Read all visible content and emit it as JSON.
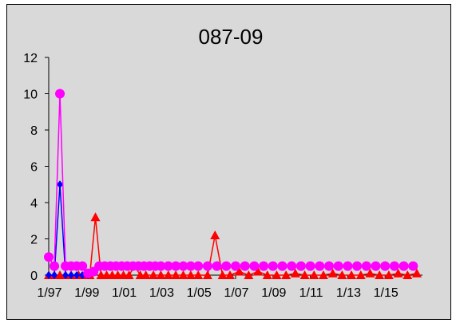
{
  "chart_data": {
    "type": "line",
    "title": "087-09",
    "xlabel": "",
    "ylabel": "",
    "ylim": [
      0,
      12
    ],
    "yticks": [
      0,
      2,
      4,
      6,
      8,
      10,
      12
    ],
    "xticks": [
      "1/97",
      "1/99",
      "1/01",
      "1/03",
      "1/05",
      "1/07",
      "1/09",
      "1/11",
      "1/13",
      "1/15"
    ],
    "xrange": [
      1997.0,
      2017.0
    ],
    "grid": false,
    "legend": "none",
    "series": [
      {
        "color": "#ff0000",
        "marker": "triangle",
        "x": [
          1997.0,
          1997.3,
          1997.6,
          1997.9,
          1998.2,
          1998.6,
          1998.9,
          1999.2,
          1999.5,
          1999.8,
          2000.1,
          2000.4,
          2000.7,
          2001.0,
          2001.3,
          2001.6,
          2001.9,
          2002.2,
          2002.6,
          2003.0,
          2003.4,
          2003.8,
          2004.2,
          2004.6,
          2005.0,
          2005.5,
          2005.9,
          2006.3,
          2006.7,
          2007.2,
          2007.7,
          2008.2,
          2008.7,
          2009.2,
          2009.7,
          2010.2,
          2010.7,
          2011.2,
          2011.7,
          2012.2,
          2012.7,
          2013.2,
          2013.7,
          2014.2,
          2014.7,
          2015.2,
          2015.7,
          2016.2,
          2016.7
        ],
        "y": [
          0,
          0,
          0,
          0,
          0,
          0,
          0,
          0,
          3.2,
          0,
          0,
          0,
          0,
          0,
          0,
          0.5,
          0,
          0,
          0,
          0,
          0,
          0,
          0,
          0,
          0,
          0,
          2.2,
          0,
          0,
          0.2,
          0,
          0.2,
          0,
          0,
          0,
          0.1,
          0,
          0,
          0,
          0.1,
          0,
          0,
          0,
          0.1,
          0,
          0,
          0.1,
          0,
          0.1
        ]
      },
      {
        "color": "#0000ff",
        "marker": "diamond",
        "x": [
          1997.0,
          1997.3,
          1997.6,
          1997.9,
          1998.2,
          1998.5,
          1998.8,
          1999.1
        ],
        "y": [
          0,
          0,
          5,
          0,
          0,
          0,
          0,
          0
        ]
      },
      {
        "color": "#ff00ff",
        "marker": "circle",
        "x": [
          1997.0,
          1997.3,
          1997.6,
          1997.9,
          1998.2,
          1998.5,
          1998.8,
          1999.1,
          1999.4,
          1999.7,
          2000.0,
          2000.3,
          2000.6,
          2000.9,
          2001.2,
          2001.5,
          2001.8,
          2002.1,
          2002.4,
          2002.7,
          2003.0,
          2003.4,
          2003.8,
          2004.2,
          2004.6,
          2005.0,
          2005.5,
          2006.0,
          2006.5,
          2007.0,
          2007.5,
          2008.0,
          2008.5,
          2009.0,
          2009.5,
          2010.0,
          2010.5,
          2011.0,
          2011.5,
          2012.0,
          2012.5,
          2013.0,
          2013.5,
          2014.0,
          2014.5,
          2015.0,
          2015.5,
          2016.0,
          2016.5
        ],
        "y": [
          1.0,
          0.5,
          10,
          0.5,
          0.5,
          0.5,
          0.5,
          0.1,
          0.2,
          0.5,
          0.5,
          0.5,
          0.5,
          0.5,
          0.5,
          0.5,
          0.5,
          0.5,
          0.5,
          0.5,
          0.5,
          0.5,
          0.5,
          0.5,
          0.5,
          0.5,
          0.5,
          0.5,
          0.5,
          0.5,
          0.5,
          0.5,
          0.5,
          0.5,
          0.5,
          0.5,
          0.5,
          0.5,
          0.5,
          0.5,
          0.5,
          0.5,
          0.5,
          0.5,
          0.5,
          0.5,
          0.5,
          0.5,
          0.5
        ]
      }
    ]
  }
}
